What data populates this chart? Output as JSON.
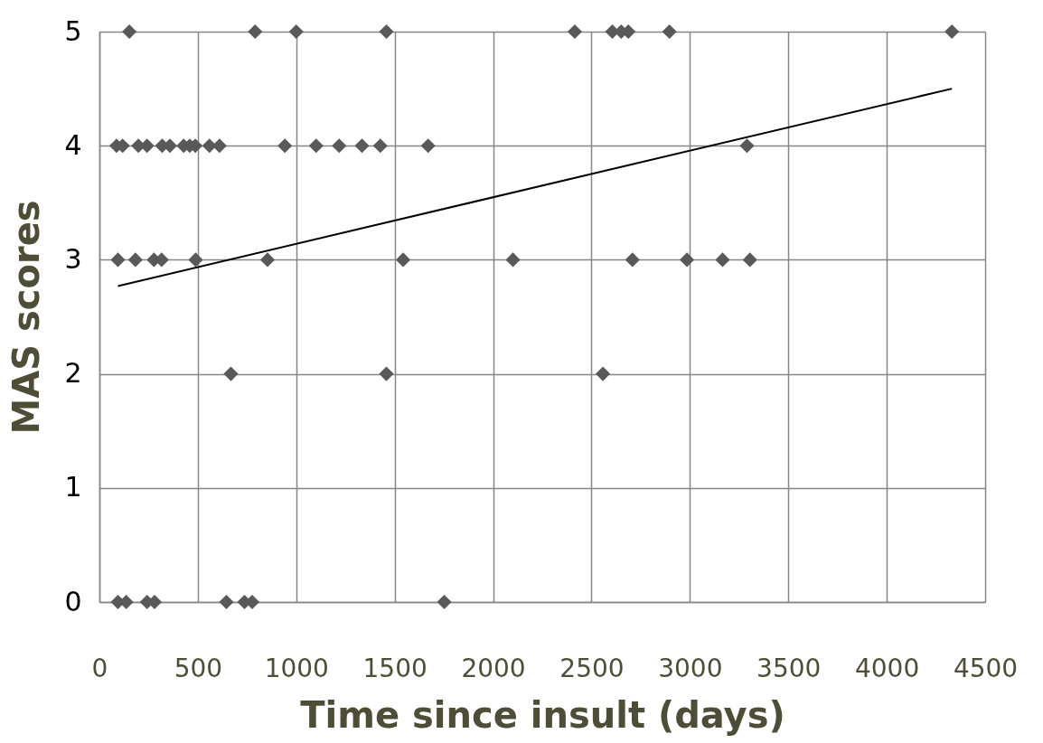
{
  "chart_data": {
    "type": "scatter",
    "xlabel": "Time since insult (days)",
    "ylabel": "MAS scores",
    "xlim": [
      0,
      4500
    ],
    "xticks": [
      0,
      500,
      1000,
      1500,
      2000,
      2500,
      3000,
      3500,
      4000,
      4500
    ],
    "ylim": [
      0,
      5
    ],
    "yticks": [
      0,
      1,
      2,
      3,
      4,
      5
    ],
    "grid": true,
    "marker": "diamond",
    "series": [
      {
        "color": "#595959",
        "x": [
          152,
          791,
          1000,
          1458,
          2415,
          2606,
          2651,
          2687,
          2896,
          4331,
          87,
          118,
          198,
          242,
          319,
          358,
          428,
          459,
          487,
          559,
          610,
          942,
          1101,
          1218,
          1334,
          1427,
          1670,
          3290,
          94,
          183,
          277,
          316,
          489,
          854,
          1543,
          2101,
          2708,
          2985,
          3166,
          3305,
          668,
          1458,
          2558,
          94,
          136,
          242,
          280,
          645,
          737,
          776,
          1752
        ],
        "values": [
          5,
          5,
          5,
          5,
          5,
          5,
          5,
          5,
          5,
          5,
          4,
          4,
          4,
          4,
          4,
          4,
          4,
          4,
          4,
          4,
          4,
          4,
          4,
          4,
          4,
          4,
          4,
          4,
          3,
          3,
          3,
          3,
          3,
          3,
          3,
          3,
          3,
          3,
          3,
          3,
          2,
          2,
          2,
          0,
          0,
          0,
          0,
          0,
          0,
          0,
          0
        ]
      },
      {
        "type": "line",
        "color": "#000000",
        "marker": "none",
        "line_style": "solid",
        "x": [
          94,
          4331
        ],
        "values": [
          2.77,
          4.5
        ]
      }
    ]
  }
}
